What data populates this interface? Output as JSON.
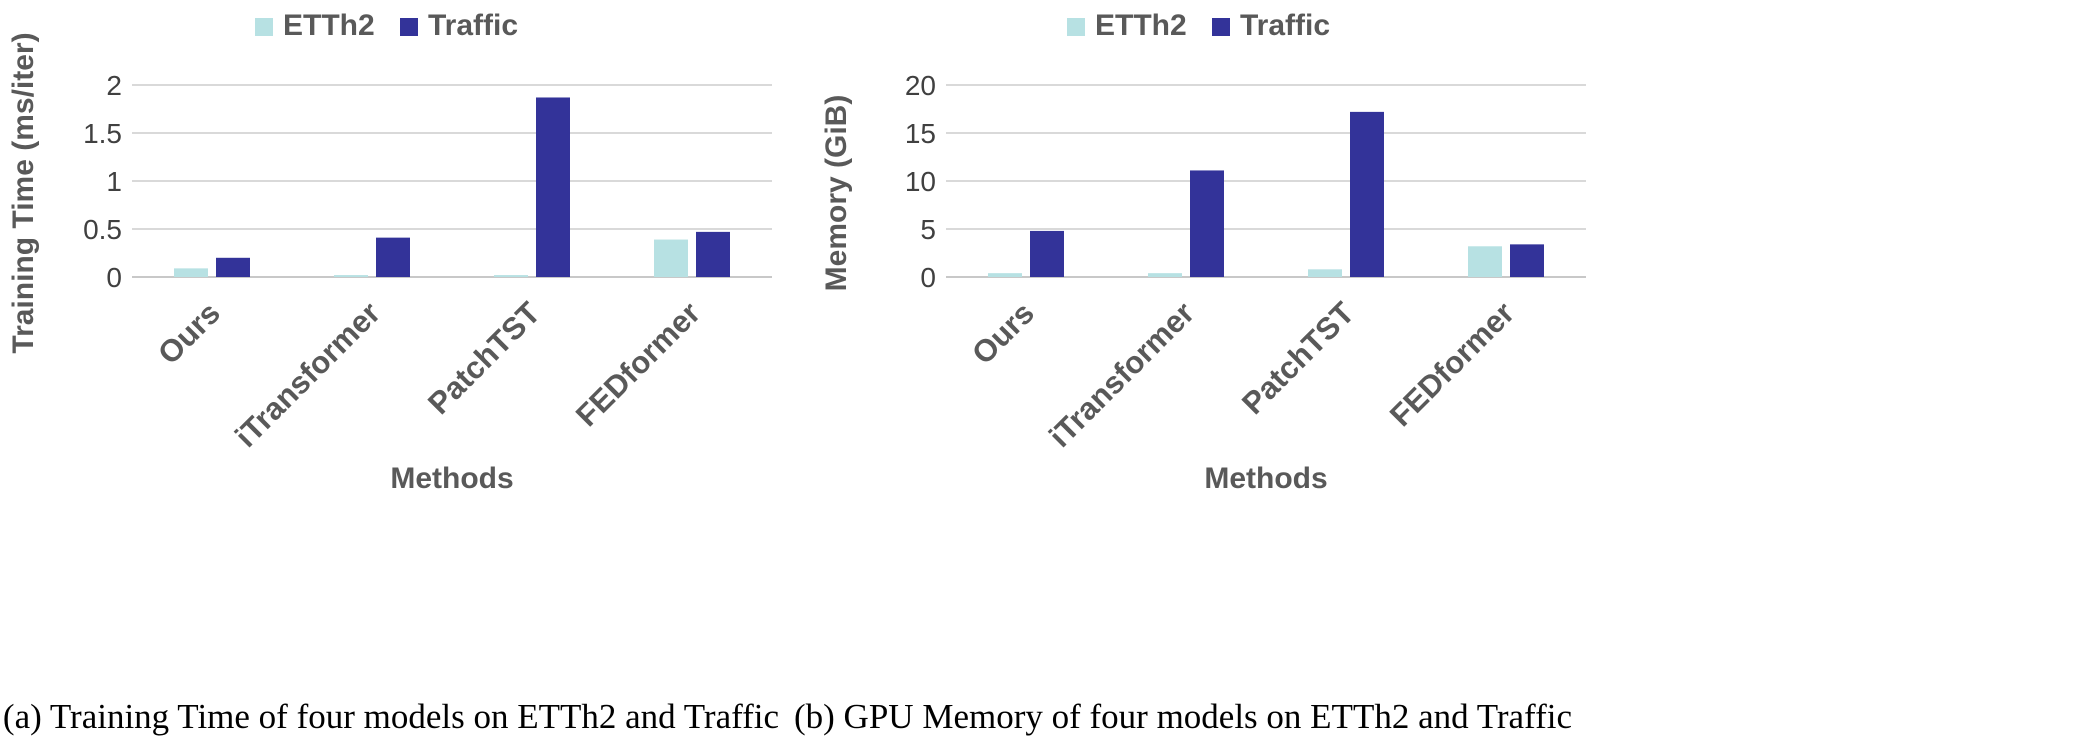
{
  "chart_data": [
    {
      "type": "bar",
      "categories": [
        "Ours",
        "iTransformer",
        "PatchTST",
        "FEDformer"
      ],
      "series": [
        {
          "name": "ETTh2",
          "values": [
            0.09,
            0.02,
            0.02,
            0.39
          ],
          "color": "#b7e1e3"
        },
        {
          "name": "Traffic",
          "values": [
            0.2,
            0.41,
            1.87,
            0.47
          ],
          "color": "#333399"
        }
      ],
      "ylabel": "Training Time (ms/iter)",
      "xlabel": "Methods",
      "ylim": [
        0,
        2
      ],
      "yticks": [
        0,
        0.5,
        1,
        1.5,
        2
      ],
      "ytick_labels": [
        "0",
        "0.5",
        "1",
        "1.5",
        "2"
      ],
      "grid": true,
      "legend": "top-center",
      "caption": "(a) Training Time of four models on ETTh2 and Traffic"
    },
    {
      "type": "bar",
      "categories": [
        "Ours",
        "iTransformer",
        "PatchTST",
        "FEDformer"
      ],
      "series": [
        {
          "name": "ETTh2",
          "values": [
            0.4,
            0.4,
            0.8,
            3.2
          ],
          "color": "#b7e1e3"
        },
        {
          "name": "Traffic",
          "values": [
            4.8,
            11.1,
            17.2,
            3.4
          ],
          "color": "#333399"
        }
      ],
      "ylabel": "Memory (GiB)",
      "xlabel": "Methods",
      "ylim": [
        0,
        20
      ],
      "yticks": [
        0,
        5,
        10,
        15,
        20
      ],
      "ytick_labels": [
        "0",
        "5",
        "10",
        "15",
        "20"
      ],
      "grid": true,
      "legend": "top-center",
      "caption": "(b) GPU Memory of four models on ETTh2 and Traffic"
    }
  ]
}
